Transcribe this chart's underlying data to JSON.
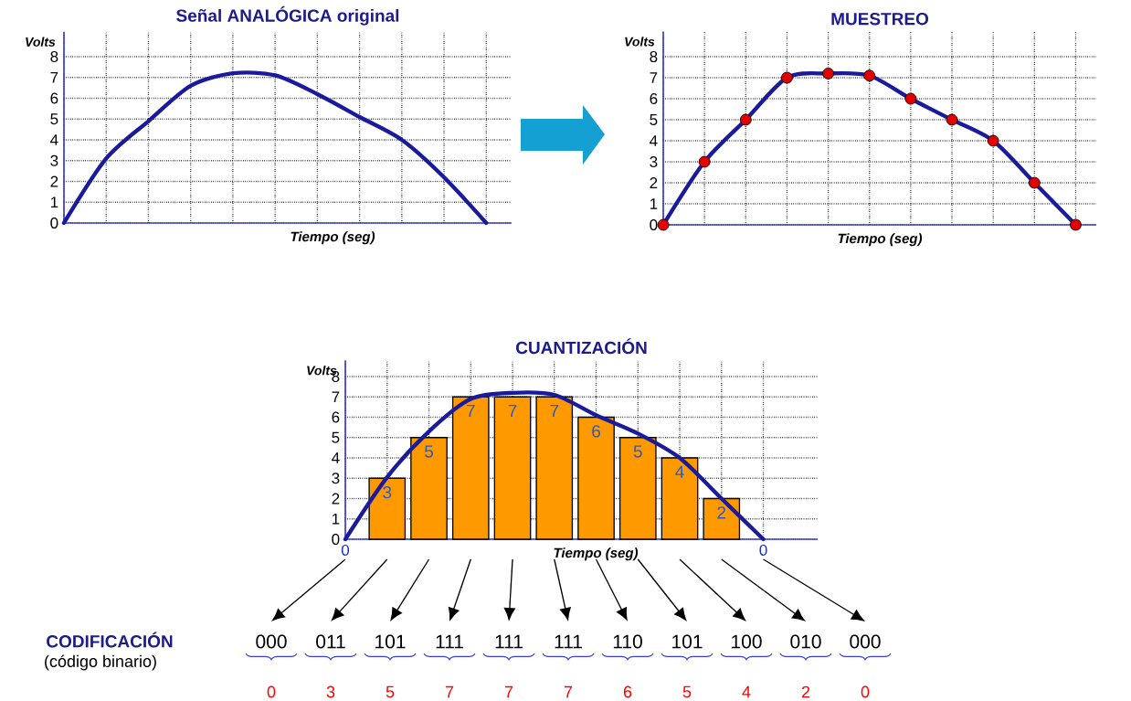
{
  "chart_data": [
    {
      "type": "line",
      "title": "Señal ANALÓGICA original",
      "xlabel": "Tiempo (seg)",
      "ylabel": "Volts",
      "categories": [
        null,
        null,
        null,
        null,
        null,
        null,
        null,
        null,
        null,
        null,
        null
      ],
      "series": [
        {
          "color": "#1a1a9c",
          "values": [
            0,
            3.1,
            4.9,
            6.6,
            7.2,
            7.1,
            6.2,
            5.1,
            4.0,
            2.2,
            0
          ]
        }
      ],
      "ylim": [
        0,
        9.2
      ],
      "yticks": [
        0,
        1,
        2,
        3,
        4,
        5,
        6,
        7,
        8
      ],
      "grid": true,
      "tick_labels": "y"
    },
    {
      "type": "line",
      "title": "MUESTREO",
      "xlabel": "Tiempo (seg)",
      "ylabel": "Volts",
      "categories": [
        null,
        null,
        null,
        null,
        null,
        null,
        null,
        null,
        null,
        null,
        null
      ],
      "series": [
        {
          "color": "#1a1a9c",
          "values": [
            0,
            3,
            5,
            7,
            7.2,
            7.1,
            6,
            5,
            4,
            2,
            0
          ]
        },
        {
          "type": "scatter",
          "color": "#e00000",
          "values": [
            0,
            3,
            5,
            7,
            7.2,
            7.1,
            6,
            5,
            4,
            2,
            0
          ]
        }
      ],
      "ylim": [
        0,
        9.2
      ],
      "yticks": [
        0,
        1,
        2,
        3,
        4,
        5,
        6,
        7,
        8
      ],
      "grid": true,
      "tick_labels": "y"
    },
    {
      "type": "bar",
      "title": "CUANTIZACIÓN",
      "xlabel": "Tiempo (seg)",
      "ylabel": "Volts",
      "categories": [
        "0",
        null,
        null,
        null,
        null,
        null,
        null,
        null,
        null,
        null,
        "0"
      ],
      "series": [
        {
          "color": "#ff9900",
          "values": [
            null,
            3,
            5,
            7,
            7,
            7,
            6,
            5,
            4,
            2,
            null
          ],
          "value_labels": [
            null,
            "3",
            "5",
            "7",
            "7",
            "7",
            "6",
            "5",
            "4",
            "2",
            null
          ]
        },
        {
          "type": "line",
          "color": "#1a1a9c",
          "values": [
            0,
            3.05,
            5.3,
            6.9,
            7.2,
            7.1,
            6.1,
            5.2,
            4.0,
            2.0,
            0
          ]
        }
      ],
      "ylim": [
        0,
        8.8
      ],
      "yticks": [
        0,
        1,
        2,
        3,
        4,
        5,
        6,
        7,
        8
      ],
      "grid": true,
      "annotations": [
        "CODIFICACIÓN",
        "(código binario)",
        "000",
        "011",
        "101",
        "111",
        "111",
        "111",
        "110",
        "101",
        "100",
        "010",
        "000",
        "0",
        "3",
        "5",
        "7",
        "7",
        "7",
        "6",
        "5",
        "4",
        "2",
        "0"
      ]
    }
  ]
}
